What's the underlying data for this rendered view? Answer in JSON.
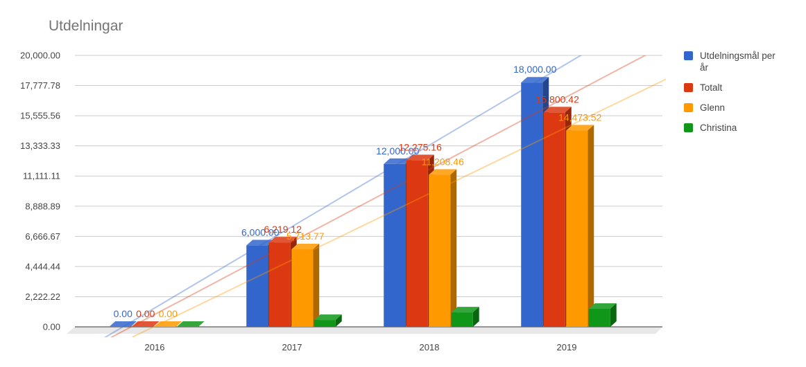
{
  "chart_data": {
    "type": "bar",
    "title": "Utdelningar",
    "categories": [
      "2016",
      "2017",
      "2018",
      "2019"
    ],
    "series": [
      {
        "name": "Utdelningsmål per år",
        "color": "#3366cc",
        "values": [
          0,
          6000,
          12000,
          18000
        ],
        "labels": [
          "0.00",
          "6,000.00",
          "12,000.00",
          "18,000.00"
        ]
      },
      {
        "name": "Totalt",
        "color": "#dc3912",
        "values": [
          0,
          6219.12,
          12275.16,
          15800.42
        ],
        "labels": [
          "0.00",
          "6,219.12",
          "12,275.16",
          "15,800.42"
        ]
      },
      {
        "name": "Glenn",
        "color": "#ff9900",
        "values": [
          0,
          5713.77,
          11208.46,
          14473.52
        ],
        "labels": [
          "0.00",
          "5,713.77",
          "11,208.46",
          "14,473.52"
        ]
      },
      {
        "name": "Christina",
        "color": "#109618",
        "values": [
          0,
          505.35,
          1066.7,
          1326.9
        ],
        "labels": []
      }
    ],
    "ylim": [
      0,
      20000
    ],
    "yticks": [
      "0.00",
      "2,222.22",
      "4,444.44",
      "6,666.67",
      "8,888.89",
      "11,111.11",
      "13,333.33",
      "15,555.56",
      "17,777.78",
      "20,000.00"
    ],
    "grid": true,
    "trendlines": true,
    "style": "3d",
    "legend_position": "right"
  }
}
